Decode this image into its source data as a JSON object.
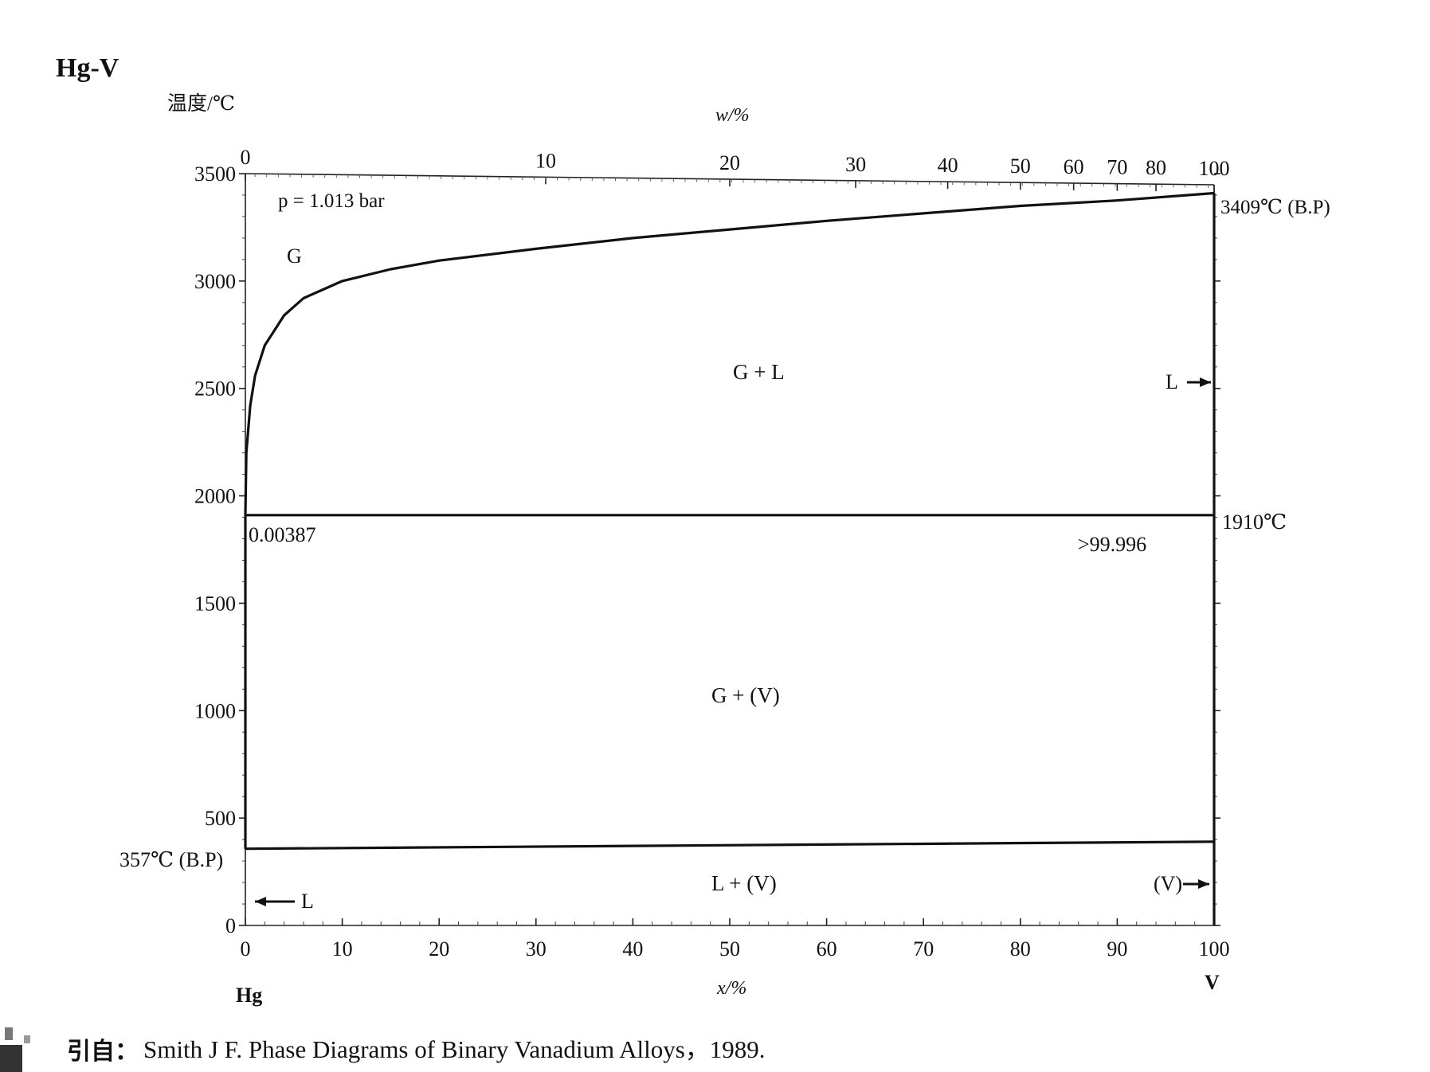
{
  "header": {
    "system": "Hg-V",
    "y_axis_label": "温度/℃",
    "top_axis_label": "w/%",
    "bottom_axis_label": "x/%",
    "left_element": "Hg",
    "right_element": "V",
    "source_prefix": "引自：",
    "source_text": "Smith J F. Phase Diagrams of Binary Vanadium Alloys，1989."
  },
  "chart_data": {
    "type": "line",
    "title": "Hg-V",
    "xlabel": "x/%",
    "x2label": "w/%",
    "ylabel": "温度/℃",
    "xlim": [
      0,
      100
    ],
    "ylim": [
      0,
      3500
    ],
    "pressure_note": "p = 1.013 bar",
    "y_ticks": [
      0,
      500,
      1000,
      1500,
      2000,
      2500,
      3000,
      3500
    ],
    "x_ticks": [
      0,
      10,
      20,
      30,
      40,
      50,
      60,
      70,
      80,
      90,
      100
    ],
    "top_ticks": [
      {
        "w": 0,
        "x": 0
      },
      {
        "w": 10,
        "x": 31
      },
      {
        "w": 20,
        "x": 50
      },
      {
        "w": 30,
        "x": 63
      },
      {
        "w": 40,
        "x": 72.5
      },
      {
        "w": 50,
        "x": 80
      },
      {
        "w": 60,
        "x": 85.5
      },
      {
        "w": 70,
        "x": 90
      },
      {
        "w": 80,
        "x": 94
      },
      {
        "w": 100,
        "x": 100
      }
    ],
    "series": [
      {
        "values": [
          {
            "x": 0,
            "y": 1910
          },
          {
            "x": 0.1,
            "y": 2200
          },
          {
            "x": 0.5,
            "y": 2420
          },
          {
            "x": 1,
            "y": 2560
          },
          {
            "x": 2,
            "y": 2700
          },
          {
            "x": 4,
            "y": 2840
          },
          {
            "x": 6,
            "y": 2920
          },
          {
            "x": 10,
            "y": 3000
          },
          {
            "x": 15,
            "y": 3055
          },
          {
            "x": 20,
            "y": 3095
          },
          {
            "x": 30,
            "y": 3150
          },
          {
            "x": 40,
            "y": 3200
          },
          {
            "x": 50,
            "y": 3240
          },
          {
            "x": 60,
            "y": 3280
          },
          {
            "x": 70,
            "y": 3315
          },
          {
            "x": 80,
            "y": 3350
          },
          {
            "x": 90,
            "y": 3375
          },
          {
            "x": 100,
            "y": 3409
          }
        ]
      },
      {
        "values": [
          {
            "x": 0,
            "y": 1910
          },
          {
            "x": 100,
            "y": 1910
          }
        ]
      },
      {
        "values": [
          {
            "x": 0,
            "y": 357
          },
          {
            "x": 100,
            "y": 390
          }
        ]
      },
      {
        "values": [
          {
            "x": 0,
            "y": 357
          },
          {
            "x": 0,
            "y": 1910
          }
        ]
      },
      {
        "values": [
          {
            "x": 100,
            "y": 0
          },
          {
            "x": 100,
            "y": 3409
          }
        ]
      }
    ],
    "annotations": {
      "bp_right": "3409℃ (B.P)",
      "bp_left": "357℃ (B.P)",
      "eutectic_temp": "1910℃",
      "left_composition": "0.00387",
      "right_composition": ">99.996",
      "phase_G": "G",
      "phase_G_L": "G + L",
      "phase_G_V": "G + (V)",
      "phase_L_V": "L + (V)",
      "arrow_L_right": "L",
      "arrow_L_left": "L",
      "arrow_V": "(V)"
    }
  }
}
